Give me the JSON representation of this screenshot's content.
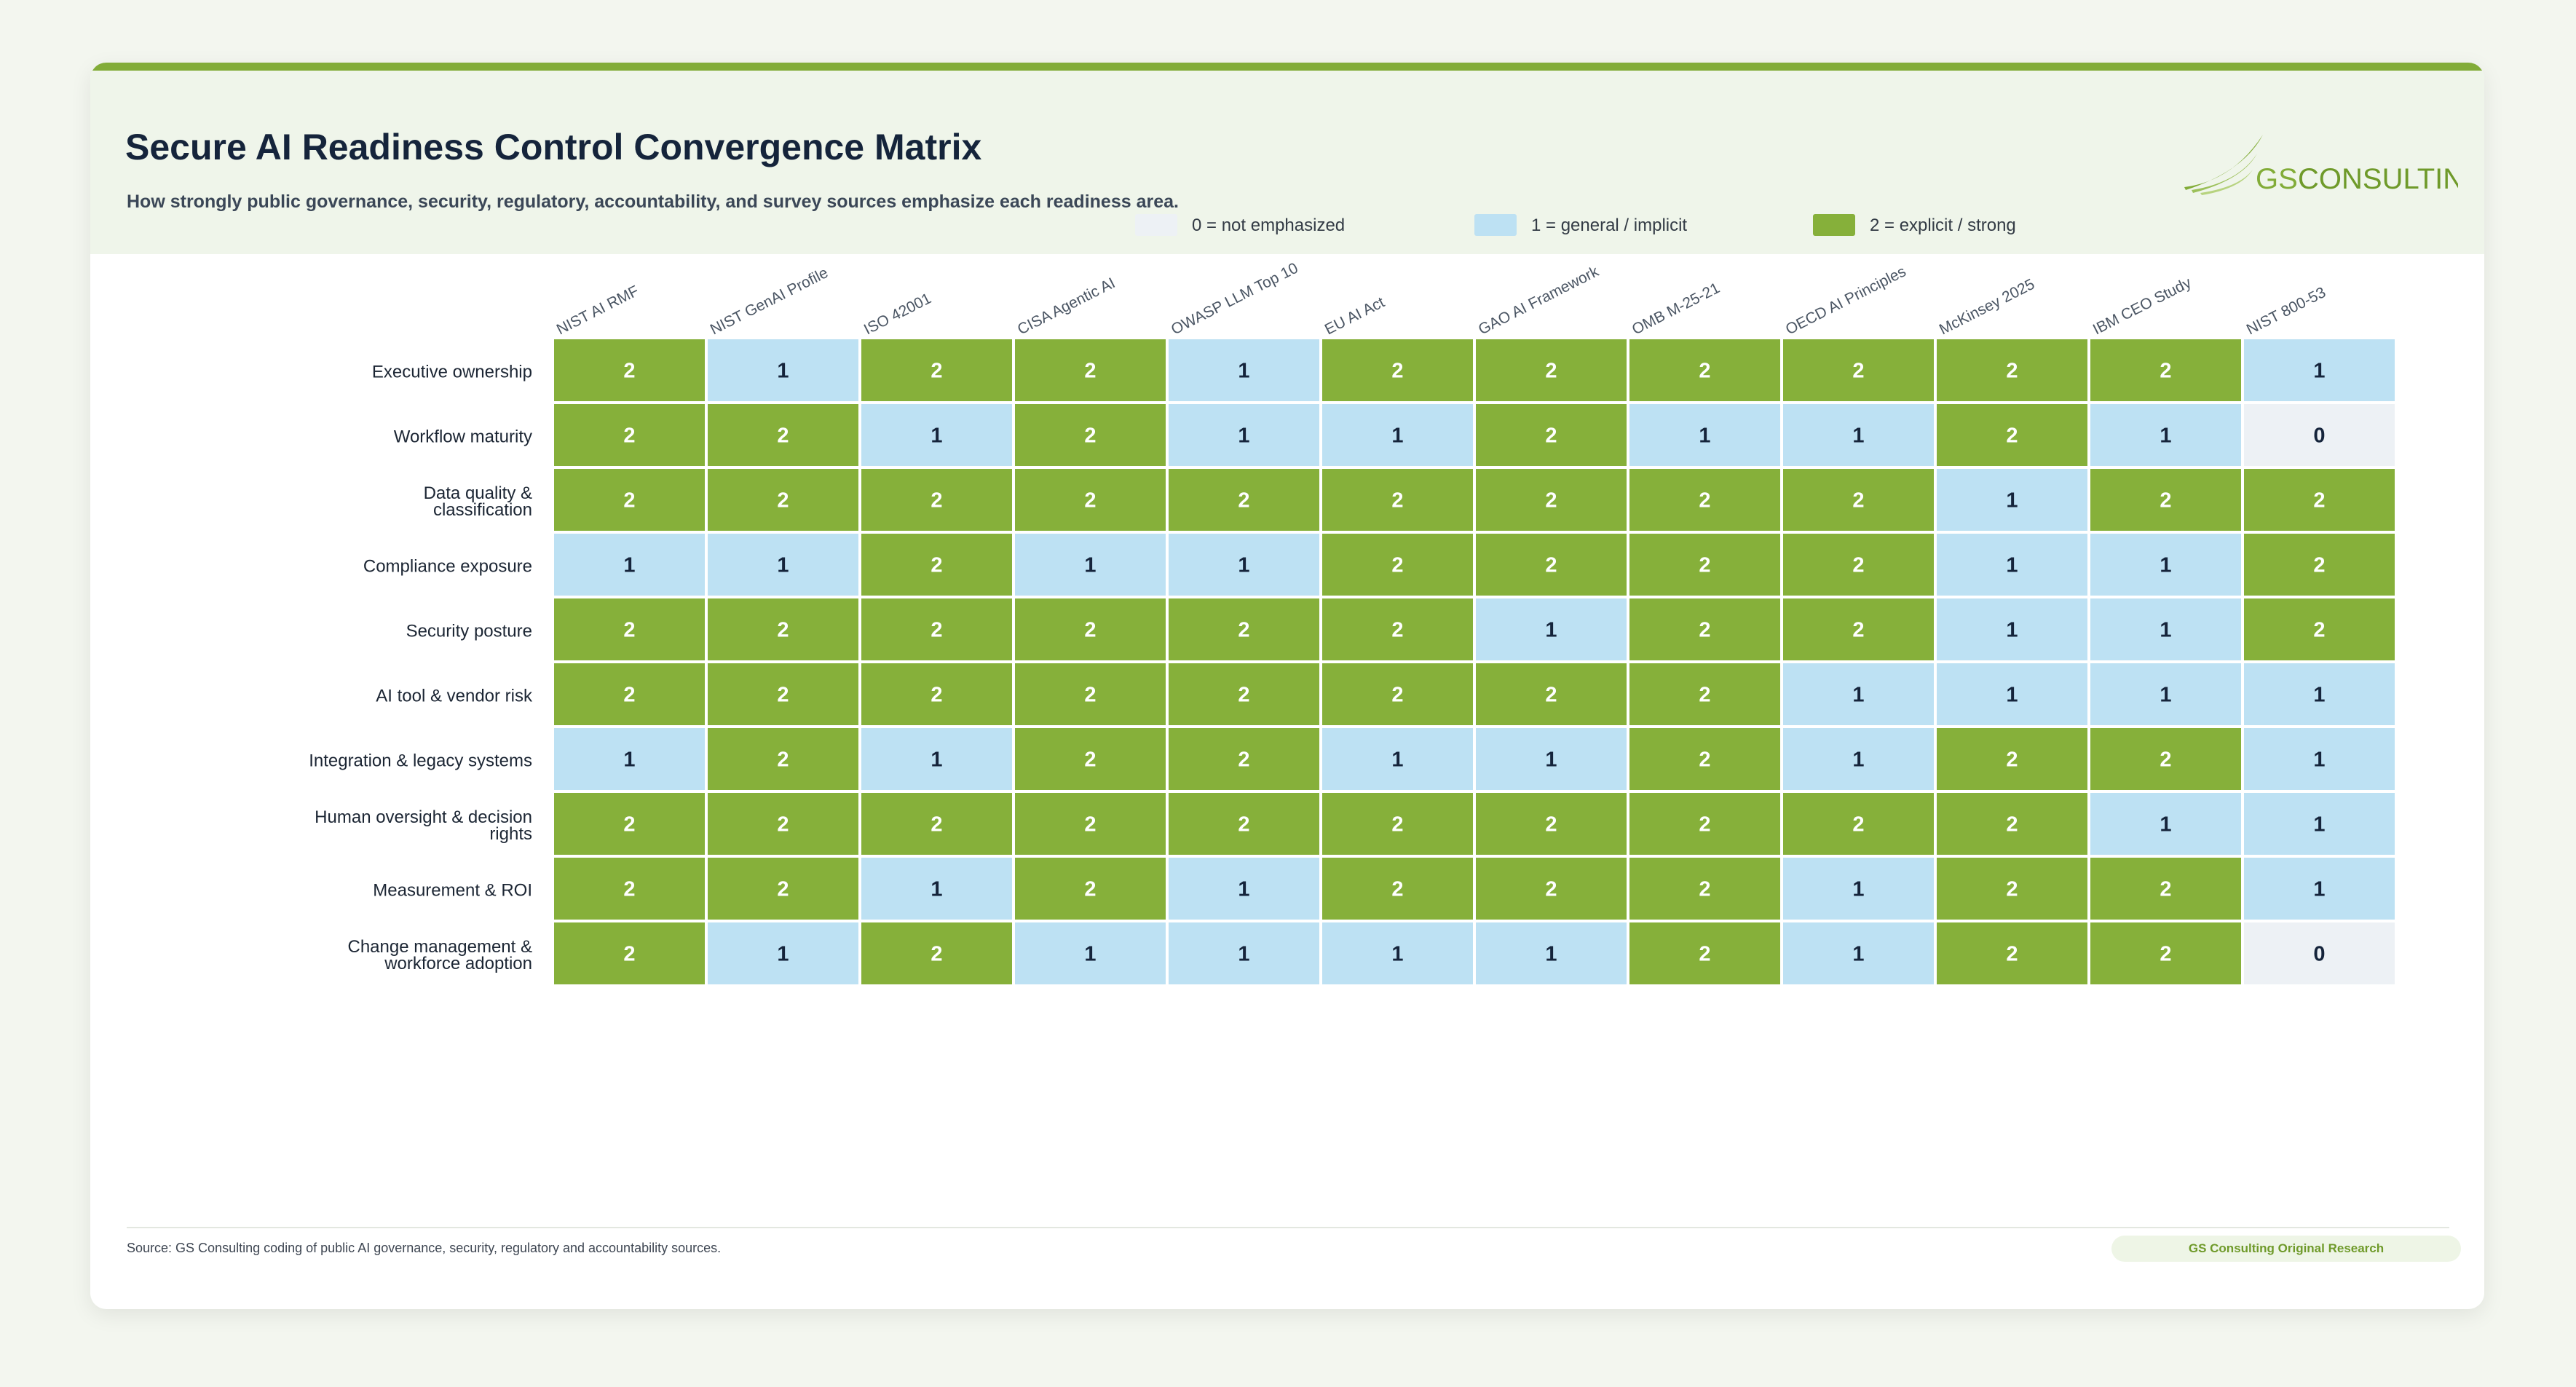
{
  "header": {
    "title": "Secure AI Readiness Control Convergence Matrix",
    "subtitle": "How strongly public governance, security, regulatory, accountability, and survey sources emphasize each readiness area."
  },
  "logo": {
    "text_gs": "GS",
    "text_consulting": "CONSULTING"
  },
  "legend": [
    {
      "label": "0 = not emphasized",
      "color": "#edf1f5"
    },
    {
      "label": "1 = general / implicit",
      "color": "#bde1f3"
    },
    {
      "label": "2 = explicit / strong",
      "color": "#86b03a"
    }
  ],
  "chart_data": {
    "type": "heatmap",
    "columns": [
      "NIST AI RMF",
      "NIST GenAI Profile",
      "ISO 42001",
      "CISA Agentic AI",
      "OWASP LLM Top 10",
      "EU AI Act",
      "GAO AI Framework",
      "OMB M-25-21",
      "OECD AI Principles",
      "McKinsey 2025",
      "IBM CEO Study",
      "NIST 800-53"
    ],
    "rows": [
      {
        "label": [
          "Executive ownership"
        ],
        "values": [
          2,
          1,
          2,
          2,
          1,
          2,
          2,
          2,
          2,
          2,
          2,
          1
        ]
      },
      {
        "label": [
          "Workflow maturity"
        ],
        "values": [
          2,
          2,
          1,
          2,
          1,
          1,
          2,
          1,
          1,
          2,
          1,
          0
        ]
      },
      {
        "label": [
          "Data quality &",
          "classification"
        ],
        "values": [
          2,
          2,
          2,
          2,
          2,
          2,
          2,
          2,
          2,
          1,
          2,
          2
        ]
      },
      {
        "label": [
          "Compliance exposure"
        ],
        "values": [
          1,
          1,
          2,
          1,
          1,
          2,
          2,
          2,
          2,
          1,
          1,
          2
        ]
      },
      {
        "label": [
          "Security posture"
        ],
        "values": [
          2,
          2,
          2,
          2,
          2,
          2,
          1,
          2,
          2,
          1,
          1,
          2
        ]
      },
      {
        "label": [
          "AI tool & vendor risk"
        ],
        "values": [
          2,
          2,
          2,
          2,
          2,
          2,
          2,
          2,
          1,
          1,
          1,
          1
        ]
      },
      {
        "label": [
          "Integration & legacy systems"
        ],
        "values": [
          1,
          2,
          1,
          2,
          2,
          1,
          1,
          2,
          1,
          2,
          2,
          1
        ]
      },
      {
        "label": [
          "Human oversight & decision",
          "rights"
        ],
        "values": [
          2,
          2,
          2,
          2,
          2,
          2,
          2,
          2,
          2,
          2,
          1,
          1
        ]
      },
      {
        "label": [
          "Measurement & ROI"
        ],
        "values": [
          2,
          2,
          1,
          2,
          1,
          2,
          2,
          2,
          1,
          2,
          2,
          1
        ]
      },
      {
        "label": [
          "Change management &",
          "workforce adoption"
        ],
        "values": [
          2,
          1,
          2,
          1,
          1,
          1,
          1,
          2,
          1,
          2,
          2,
          0
        ]
      }
    ],
    "scale_colors": {
      "0": "#edf1f5",
      "1": "#bde1f3",
      "2": "#86b03a"
    },
    "text_colors": {
      "0": "#15243b",
      "1": "#15243b",
      "2": "#ffffff"
    }
  },
  "footer": {
    "source": "Source: GS Consulting coding of public AI governance, security, regulatory and accountability sources.",
    "badge": "GS Consulting Original Research"
  }
}
